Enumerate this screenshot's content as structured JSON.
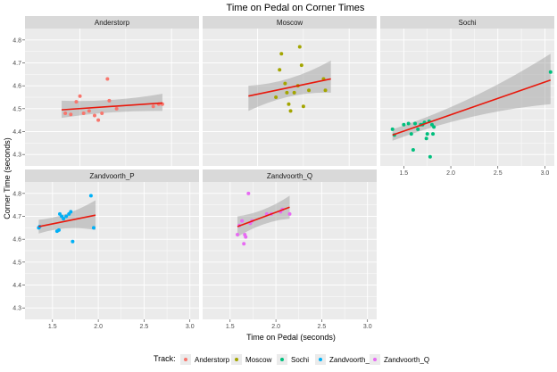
{
  "chart_data": {
    "type": "scatter",
    "title": "Time on Pedal on Corner Times",
    "xlabel": "Time on Pedal (seconds)",
    "ylabel": "Corner Time (seconds)",
    "legend_title": "Track:",
    "legend_position": "bottom",
    "grid": true,
    "fit_line_color": "#e8180c",
    "facets": [
      {
        "name": "Anderstorp",
        "color": "#F8766D",
        "xlim": [
          1.2,
          2.15
        ],
        "ylim": [
          4.25,
          4.85
        ],
        "xticks": [],
        "yticks": [
          4.3,
          4.4,
          4.5,
          4.6,
          4.7,
          4.8
        ],
        "fit": {
          "x": [
            1.4,
            1.95
          ],
          "y": [
            4.495,
            4.525
          ],
          "se_lo": [
            4.46,
            4.49
          ],
          "se_hi": [
            4.535,
            4.565
          ]
        },
        "points": [
          [
            1.42,
            4.48
          ],
          [
            1.45,
            4.475
          ],
          [
            1.48,
            4.53
          ],
          [
            1.5,
            4.555
          ],
          [
            1.52,
            4.48
          ],
          [
            1.55,
            4.49
          ],
          [
            1.58,
            4.47
          ],
          [
            1.6,
            4.45
          ],
          [
            1.62,
            4.48
          ],
          [
            1.65,
            4.63
          ],
          [
            1.66,
            4.535
          ],
          [
            1.7,
            4.5
          ],
          [
            1.9,
            4.51
          ],
          [
            1.93,
            4.52
          ],
          [
            1.95,
            4.52
          ]
        ]
      },
      {
        "name": "Moscow",
        "color": "#A3A500",
        "xlim": [
          1.2,
          2.15
        ],
        "ylim": [
          4.25,
          4.85
        ],
        "xticks": [],
        "yticks": [],
        "fit": {
          "x": [
            1.45,
            1.9
          ],
          "y": [
            4.555,
            4.63
          ],
          "se_lo": [
            4.49,
            4.57
          ],
          "se_hi": [
            4.6,
            4.71
          ]
        },
        "points": [
          [
            1.6,
            4.55
          ],
          [
            1.62,
            4.67
          ],
          [
            1.63,
            4.74
          ],
          [
            1.65,
            4.61
          ],
          [
            1.66,
            4.57
          ],
          [
            1.67,
            4.52
          ],
          [
            1.68,
            4.49
          ],
          [
            1.7,
            4.57
          ],
          [
            1.72,
            4.6
          ],
          [
            1.73,
            4.77
          ],
          [
            1.74,
            4.69
          ],
          [
            1.75,
            4.51
          ],
          [
            1.78,
            4.58
          ],
          [
            1.86,
            4.63
          ],
          [
            1.87,
            4.58
          ]
        ]
      },
      {
        "name": "Sochi",
        "color": "#00BF7D",
        "xlim": [
          1.25,
          3.1
        ],
        "ylim": [
          4.25,
          4.85
        ],
        "xticks": [
          1.5,
          2.0,
          2.5,
          3.0
        ],
        "yticks": [],
        "fit": {
          "x": [
            1.38,
            3.06
          ],
          "y": [
            4.385,
            4.625
          ],
          "se_lo": [
            4.36,
            4.52
          ],
          "se_hi": [
            4.41,
            4.74
          ]
        },
        "points": [
          [
            1.38,
            4.41
          ],
          [
            1.4,
            4.385
          ],
          [
            1.5,
            4.43
          ],
          [
            1.55,
            4.435
          ],
          [
            1.58,
            4.39
          ],
          [
            1.6,
            4.32
          ],
          [
            1.62,
            4.435
          ],
          [
            1.65,
            4.41
          ],
          [
            1.68,
            4.43
          ],
          [
            1.7,
            4.43
          ],
          [
            1.72,
            4.44
          ],
          [
            1.74,
            4.37
          ],
          [
            1.75,
            4.39
          ],
          [
            1.77,
            4.445
          ],
          [
            1.78,
            4.29
          ],
          [
            1.8,
            4.43
          ],
          [
            1.81,
            4.39
          ],
          [
            1.82,
            4.42
          ],
          [
            3.06,
            4.66
          ]
        ]
      },
      {
        "name": "Zandvoorth_P",
        "color": "#00B0F6",
        "xlim": [
          1.2,
          3.1
        ],
        "ylim": [
          4.25,
          4.85
        ],
        "xticks": [
          1.5,
          2.0,
          2.5,
          3.0
        ],
        "yticks": [
          4.3,
          4.4,
          4.5,
          4.6,
          4.7,
          4.8
        ],
        "fit": {
          "x": [
            1.35,
            1.97
          ],
          "y": [
            4.655,
            4.705
          ],
          "se_lo": [
            4.625,
            4.64
          ],
          "se_hi": [
            4.685,
            4.77
          ]
        },
        "points": [
          [
            1.35,
            4.65
          ],
          [
            1.36,
            4.655
          ],
          [
            1.55,
            4.635
          ],
          [
            1.57,
            4.64
          ],
          [
            1.58,
            4.71
          ],
          [
            1.6,
            4.7
          ],
          [
            1.62,
            4.69
          ],
          [
            1.65,
            4.7
          ],
          [
            1.68,
            4.71
          ],
          [
            1.7,
            4.72
          ],
          [
            1.72,
            4.59
          ],
          [
            1.92,
            4.79
          ],
          [
            1.95,
            4.65
          ]
        ]
      },
      {
        "name": "Zandvoorth_Q",
        "color": "#E76BF3",
        "xlim": [
          1.2,
          3.1
        ],
        "ylim": [
          4.25,
          4.85
        ],
        "xticks": [
          1.5,
          2.0,
          2.5,
          3.0
        ],
        "yticks": [],
        "fit": {
          "x": [
            1.58,
            2.15
          ],
          "y": [
            4.655,
            4.74
          ],
          "se_lo": [
            4.61,
            4.69
          ],
          "se_hi": [
            4.7,
            4.79
          ]
        },
        "points": [
          [
            1.58,
            4.62
          ],
          [
            1.6,
            4.66
          ],
          [
            1.63,
            4.68
          ],
          [
            1.65,
            4.58
          ],
          [
            1.66,
            4.62
          ],
          [
            1.67,
            4.61
          ],
          [
            1.7,
            4.8
          ],
          [
            1.72,
            4.67
          ],
          [
            1.74,
            4.68
          ],
          [
            1.9,
            4.71
          ],
          [
            1.95,
            4.71
          ],
          [
            2.05,
            4.72
          ],
          [
            2.07,
            4.73
          ],
          [
            2.15,
            4.71
          ]
        ]
      }
    ]
  }
}
